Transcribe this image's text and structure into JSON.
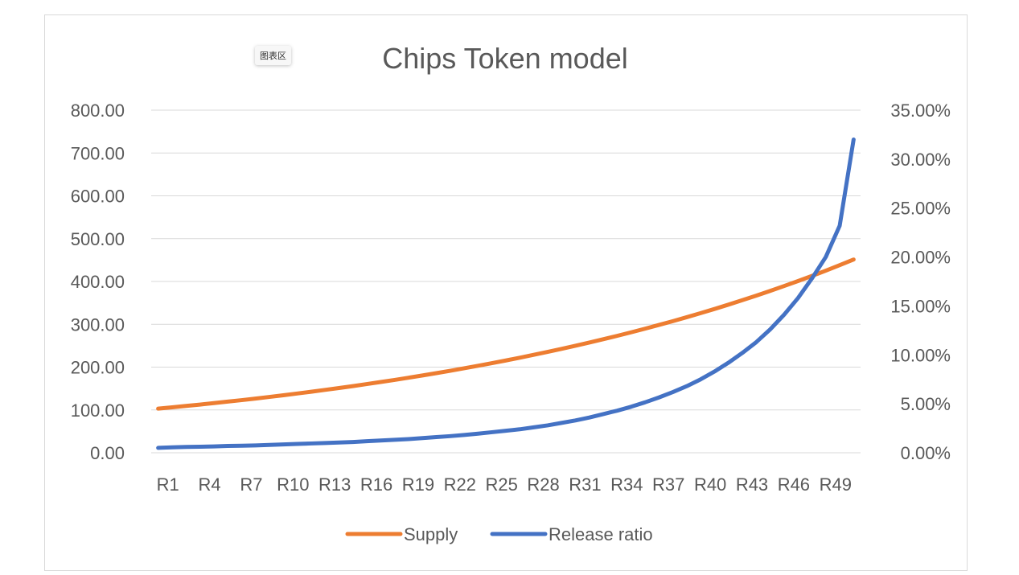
{
  "chart_area_label": "图表区",
  "chart_data": {
    "type": "line",
    "title": "Chips Token model",
    "x_tick_labels": [
      "R1",
      "R4",
      "R7",
      "R10",
      "R13",
      "R16",
      "R19",
      "R22",
      "R25",
      "R28",
      "R31",
      "R34",
      "R37",
      "R40",
      "R43",
      "R46",
      "R49"
    ],
    "rounds": 51,
    "y_left": {
      "ylim": [
        0,
        800
      ],
      "ticks": [
        "0.00",
        "100.00",
        "200.00",
        "300.00",
        "400.00",
        "500.00",
        "600.00",
        "700.00",
        "800.00"
      ]
    },
    "y_right": {
      "ylim": [
        0,
        0.35
      ],
      "ticks": [
        "0.00%",
        "5.00%",
        "10.00%",
        "15.00%",
        "20.00%",
        "25.00%",
        "30.00%",
        "35.00%"
      ]
    },
    "grid": true,
    "legend_position": "bottom",
    "series": [
      {
        "name": "Supply",
        "axis": "left",
        "color": "#ED7D31",
        "values": [
          103,
          106.1,
          109.3,
          112.5,
          115.9,
          119.4,
          122.9,
          126.6,
          130.4,
          134.3,
          138.4,
          142.5,
          146.8,
          151.2,
          155.7,
          160.4,
          165.2,
          170.1,
          175.2,
          180.5,
          185.9,
          191.5,
          197.3,
          203.2,
          209.3,
          215.5,
          222,
          228.7,
          235.5,
          242.6,
          249.9,
          257.4,
          265.1,
          273,
          281.2,
          289.7,
          298.4,
          307.3,
          316.5,
          326,
          335.8,
          345.9,
          356.3,
          366.9,
          377.9,
          389.3,
          400.9,
          412.9,
          425.3,
          438.1,
          451.2
        ]
      },
      {
        "name": "Release ratio",
        "axis": "right",
        "color": "#4472C4",
        "values": [
          0.005,
          0.0055,
          0.006,
          0.0062,
          0.0065,
          0.007,
          0.0072,
          0.0075,
          0.008,
          0.0085,
          0.009,
          0.0095,
          0.01,
          0.0105,
          0.011,
          0.0118,
          0.0125,
          0.0132,
          0.014,
          0.015,
          0.016,
          0.017,
          0.0182,
          0.0195,
          0.021,
          0.0225,
          0.024,
          0.026,
          0.028,
          0.0305,
          0.033,
          0.036,
          0.0395,
          0.043,
          0.047,
          0.0515,
          0.0565,
          0.062,
          0.068,
          0.075,
          0.083,
          0.092,
          0.102,
          0.113,
          0.126,
          0.141,
          0.158,
          0.178,
          0.2,
          0.232,
          0.32
        ]
      }
    ]
  }
}
